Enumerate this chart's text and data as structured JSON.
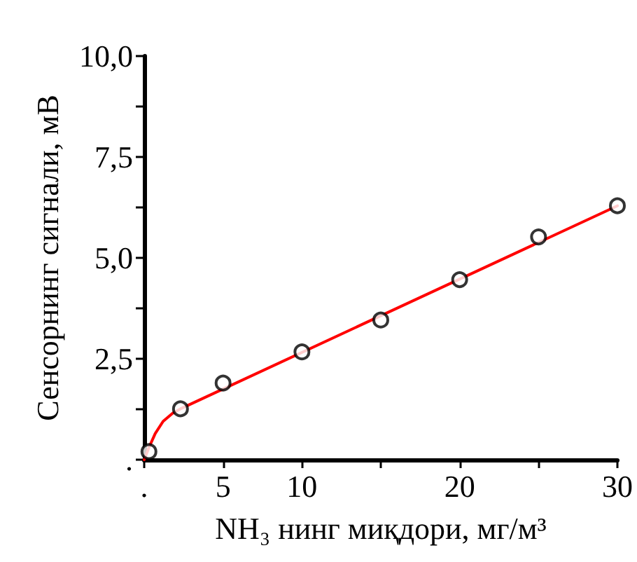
{
  "chart_data": {
    "type": "scatter",
    "xlabel": "NH₃ нинг миқдори, мг/м³",
    "ylabel": "Сенсорнинг сигнали, мВ",
    "xlim": [
      0,
      30
    ],
    "xticks": [
      {
        "value": 0,
        "label": "."
      },
      5,
      10,
      {
        "value": 15,
        "label": null
      },
      20,
      {
        "value": 25,
        "label": null
      },
      30
    ],
    "ylim": [
      0,
      10
    ],
    "yticks": [
      {
        "value": 0,
        "label": "."
      },
      {
        "value": 1.25,
        "label": null
      },
      {
        "value": 2.5,
        "label": "2,5"
      },
      {
        "value": 3.75,
        "label": null
      },
      {
        "value": 5,
        "label": "5,0"
      },
      {
        "value": 6.25,
        "label": null
      },
      {
        "value": 7.5,
        "label": "7,5"
      },
      {
        "value": 8.75,
        "label": null
      },
      {
        "value": 10,
        "label": "10,0"
      }
    ],
    "grid": false,
    "series": [
      {
        "type": "line",
        "color": "#ff0000",
        "marker": "none",
        "line_style": "solid",
        "x": [
          0,
          0.3,
          0.7,
          1.2,
          1.8,
          2.3,
          30
        ],
        "values": [
          0,
          0.3,
          0.65,
          0.95,
          1.15,
          1.26,
          6.29
        ]
      },
      {
        "color": "#000000",
        "marker": "circle",
        "x": [
          0.3,
          2.3,
          5,
          10,
          15,
          20,
          25,
          30
        ],
        "values": [
          0.2,
          1.26,
          1.9,
          2.67,
          3.46,
          4.46,
          5.52,
          6.29
        ]
      }
    ]
  }
}
